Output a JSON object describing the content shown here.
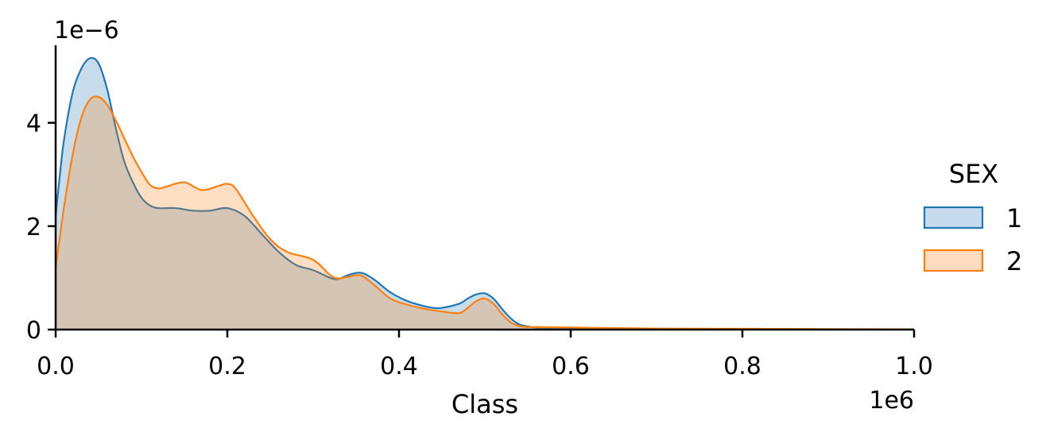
{
  "chart_data": {
    "type": "area",
    "title": "",
    "xlabel": "Class",
    "ylabel": "",
    "x_offset_text": "1e6",
    "y_offset_text": "1e−6",
    "xlim": [
      0,
      1.0
    ],
    "ylim": [
      0,
      5.5
    ],
    "x_scale_factor": 1000000,
    "y_scale_factor": 1e-06,
    "x_ticks": [
      0,
      0.2,
      0.4,
      0.6,
      0.8,
      1.0
    ],
    "x_tick_labels": [
      "0.0",
      "0.2",
      "0.4",
      "0.6",
      "0.8",
      "1.0"
    ],
    "y_ticks": [
      0,
      2,
      4
    ],
    "y_tick_labels": [
      "0",
      "2",
      "4"
    ],
    "grid": false,
    "legend": {
      "title": "SEX",
      "placement": "right"
    },
    "series": [
      {
        "name": "1",
        "color": "#1f77b4",
        "fill": "#c6dbee",
        "x": [
          0,
          0.005,
          0.01,
          0.02,
          0.03,
          0.04,
          0.05,
          0.06,
          0.07,
          0.08,
          0.09,
          0.1,
          0.11,
          0.12,
          0.14,
          0.16,
          0.18,
          0.2,
          0.22,
          0.24,
          0.26,
          0.28,
          0.3,
          0.32,
          0.33,
          0.34,
          0.355,
          0.37,
          0.39,
          0.41,
          0.43,
          0.44,
          0.45,
          0.47,
          0.48,
          0.49,
          0.5,
          0.51,
          0.52,
          0.53,
          0.54,
          0.55,
          0.56,
          0.58,
          0.6,
          0.65,
          0.7,
          0.8,
          0.9,
          1.0
        ],
        "y": [
          2.2,
          3.0,
          3.7,
          4.6,
          5.05,
          5.25,
          5.15,
          4.65,
          3.9,
          3.25,
          2.85,
          2.55,
          2.4,
          2.35,
          2.35,
          2.3,
          2.3,
          2.35,
          2.2,
          1.85,
          1.5,
          1.25,
          1.15,
          1.0,
          0.98,
          1.05,
          1.1,
          0.98,
          0.72,
          0.55,
          0.45,
          0.42,
          0.42,
          0.5,
          0.6,
          0.68,
          0.7,
          0.6,
          0.4,
          0.22,
          0.1,
          0.06,
          0.04,
          0.035,
          0.03,
          0.02,
          0.015,
          0.01,
          0.005,
          0.003
        ]
      },
      {
        "name": "2",
        "color": "#ff7f0e",
        "fill": "#ffdcc0",
        "x": [
          0,
          0.005,
          0.01,
          0.02,
          0.03,
          0.04,
          0.05,
          0.06,
          0.07,
          0.08,
          0.09,
          0.1,
          0.11,
          0.12,
          0.13,
          0.15,
          0.17,
          0.19,
          0.2,
          0.21,
          0.23,
          0.25,
          0.27,
          0.3,
          0.32,
          0.33,
          0.34,
          0.355,
          0.37,
          0.39,
          0.41,
          0.43,
          0.45,
          0.47,
          0.48,
          0.49,
          0.5,
          0.51,
          0.52,
          0.53,
          0.54,
          0.55,
          0.56,
          0.58,
          0.6,
          0.62,
          0.65,
          0.7,
          0.8,
          0.9,
          1.0
        ],
        "y": [
          1.2,
          1.8,
          2.4,
          3.4,
          4.1,
          4.45,
          4.5,
          4.35,
          4.05,
          3.7,
          3.35,
          3.05,
          2.8,
          2.73,
          2.77,
          2.85,
          2.7,
          2.78,
          2.82,
          2.72,
          2.2,
          1.75,
          1.5,
          1.35,
          1.05,
          0.99,
          1.02,
          1.05,
          0.88,
          0.6,
          0.48,
          0.4,
          0.35,
          0.32,
          0.42,
          0.55,
          0.6,
          0.5,
          0.3,
          0.14,
          0.07,
          0.05,
          0.05,
          0.045,
          0.04,
          0.035,
          0.03,
          0.02,
          0.015,
          0.01,
          0.005
        ]
      }
    ]
  }
}
